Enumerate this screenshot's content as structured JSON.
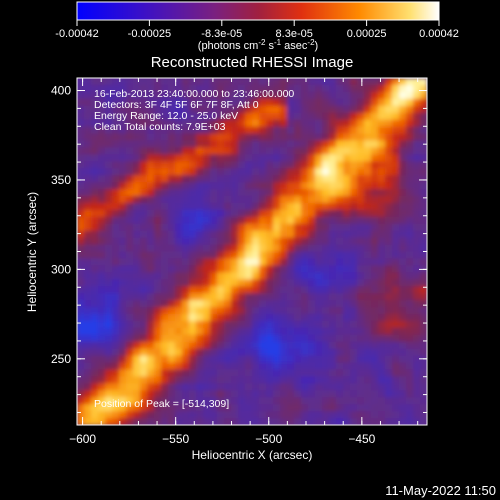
{
  "colorbar": {
    "tick_labels": [
      "-0.00042",
      "-0.00025",
      "-8.3e-05",
      "8.3e-05",
      "0.00025",
      "0.00042"
    ],
    "units_text": "(photons cm",
    "units_sup1": "-2",
    "units_mid": " s",
    "units_sup2": "-1",
    "units_end": " asec",
    "units_sup3": "-2",
    "units_close": ")",
    "colors": [
      "#0000ff",
      "#5500aa",
      "#8f1a8a",
      "#c83020",
      "#ff8000",
      "#ffe060",
      "#ffffff"
    ]
  },
  "plot": {
    "title": "Reconstructed RHESSI Image",
    "xlabel": "Heliocentric X (arcsec)",
    "ylabel": "Heliocentric Y (arcsec)",
    "x_ticks": [
      "-600",
      "-550",
      "-500",
      "-450"
    ],
    "y_ticks": [
      "250",
      "300",
      "350",
      "400"
    ],
    "info_lines": [
      "16-Feb-2013 23:40:00.000 to 23:46:00.000",
      "Detectors: 3F 4F 5F 6F 7F 8F, Att 0",
      "Energy Range: 12.0 - 25.0 keV",
      "Clean     Total counts: 7.9E+03"
    ],
    "peak_text": "Position of Peak = [-514,309]"
  },
  "timestamp": "11-May-2022 11:50"
}
